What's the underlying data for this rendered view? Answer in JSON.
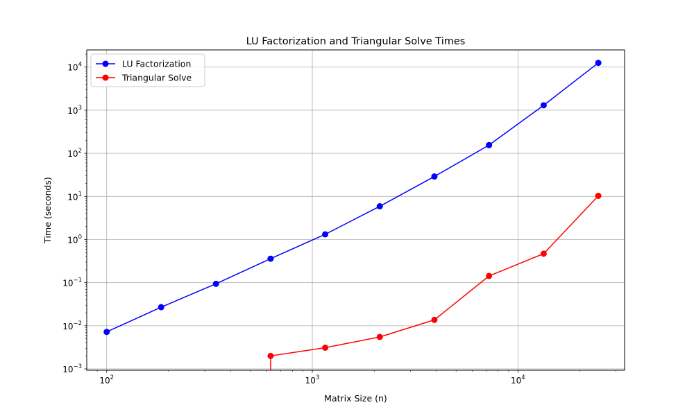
{
  "chart_data": {
    "type": "line",
    "title": "LU Factorization and Triangular Solve Times",
    "xlabel": "Matrix Size (n)",
    "ylabel": "Time (seconds)",
    "xscale": "log",
    "yscale": "log",
    "xlim": [
      80,
      33000
    ],
    "ylim": [
      0.00093,
      25000
    ],
    "grid": true,
    "legend_position": "top-left",
    "x_ticks": [
      {
        "value": 100,
        "base": "10",
        "exp": "2"
      },
      {
        "value": 1000,
        "base": "10",
        "exp": "3"
      },
      {
        "value": 10000,
        "base": "10",
        "exp": "4"
      }
    ],
    "y_ticks": [
      {
        "value": 0.001,
        "base": "10",
        "exp": "−3"
      },
      {
        "value": 0.01,
        "base": "10",
        "exp": "−2"
      },
      {
        "value": 0.1,
        "base": "10",
        "exp": "−1"
      },
      {
        "value": 1,
        "base": "10",
        "exp": "0"
      },
      {
        "value": 10,
        "base": "10",
        "exp": "1"
      },
      {
        "value": 100,
        "base": "10",
        "exp": "2"
      },
      {
        "value": 1000,
        "base": "10",
        "exp": "3"
      },
      {
        "value": 10000,
        "base": "10",
        "exp": "4"
      }
    ],
    "series": [
      {
        "name": "LU Factorization",
        "color": "#0000ff",
        "x": [
          100,
          184,
          340,
          627,
          1155,
          2128,
          3923,
          7233,
          13335,
          24585
        ],
        "y": [
          0.0072,
          0.027,
          0.094,
          0.36,
          1.32,
          5.9,
          29,
          155,
          1300,
          12500
        ]
      },
      {
        "name": "Triangular Solve",
        "color": "#ff0000",
        "x": [
          627,
          627,
          1155,
          2128,
          3923,
          7233,
          13335,
          24585
        ],
        "y": [
          0.0005,
          0.002,
          0.0031,
          0.0055,
          0.0137,
          0.143,
          0.47,
          10.3
        ]
      }
    ]
  }
}
